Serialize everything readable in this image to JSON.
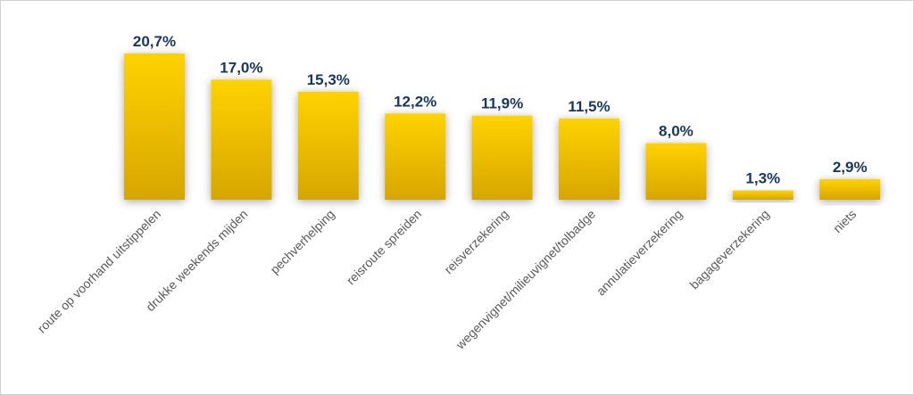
{
  "chart_data": {
    "type": "bar",
    "title": "",
    "xlabel": "",
    "ylabel": "",
    "ylim": [
      0,
      22
    ],
    "grid": false,
    "legend": "none",
    "categories": [
      "route op voorhand uitstippelen",
      "drukke weekends mijden",
      "pechverhelping",
      "reisroute spreiden",
      "reisverzekering",
      "wegenvignet/milieuvignet/tolbadge",
      "annulatieverzekering",
      "bagageverzekering",
      "niets"
    ],
    "values": [
      20.7,
      17.0,
      15.3,
      12.2,
      11.9,
      11.5,
      8.0,
      1.3,
      2.9
    ],
    "value_labels": [
      "20,7%",
      "17,0%",
      "15,3%",
      "12,2%",
      "11,9%",
      "11,5%",
      "8,0%",
      "1,3%",
      "2,9%"
    ],
    "colors": {
      "bar_top": "#ffd200",
      "bar_bottom": "#d6a600",
      "value_text": "#17375e",
      "category_text": "#595959"
    }
  }
}
